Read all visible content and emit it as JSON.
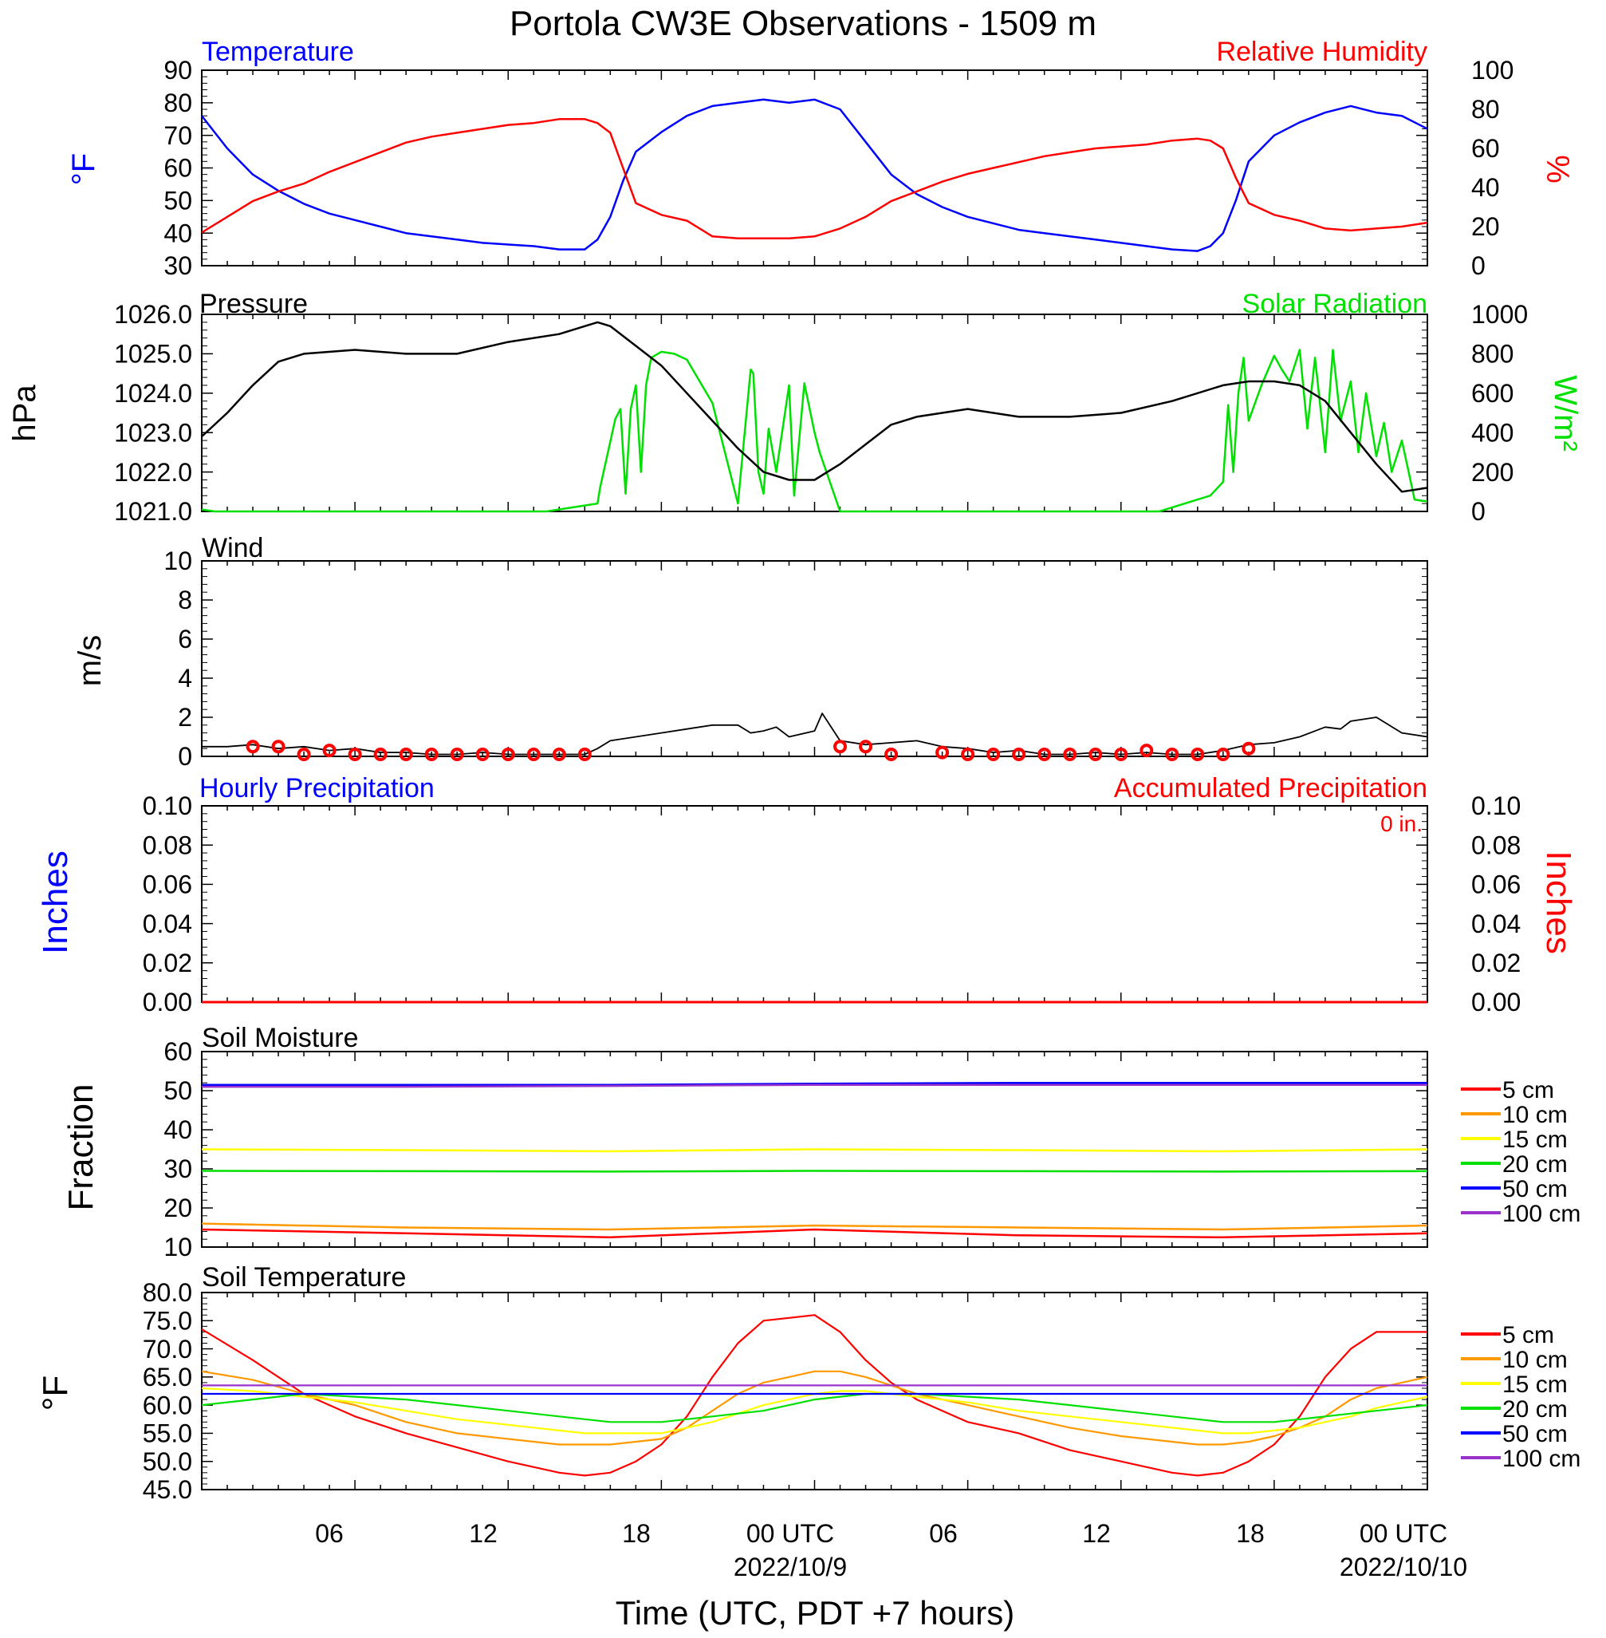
{
  "page": {
    "title": "Portola CW3E Observations - 1509 m",
    "xlabel": "Time (UTC, PDT +7 hours)",
    "x_ticks": [
      "06",
      "12",
      "18",
      "00 UTC",
      "06",
      "12",
      "18",
      "00 UTC"
    ],
    "date_labels": [
      "2022/10/9",
      "2022/10/10"
    ]
  },
  "colors": {
    "temperature": "#0000ff",
    "humidity": "#ff0000",
    "pressure": "#000000",
    "solar": "#00e000",
    "wind": "#000000",
    "wind_marker": "#ff0000",
    "hourly_precip": "#0000ff",
    "accum_precip": "#ff0000",
    "depth_5cm": "#ff0000",
    "depth_10cm": "#ff9900",
    "depth_15cm": "#ffff00",
    "depth_20cm": "#00e000",
    "depth_50cm": "#0000ff",
    "depth_100cm": "#9933cc"
  },
  "chart_data": [
    {
      "type": "line",
      "title": "Temperature / Relative Humidity",
      "left_label": "Temperature",
      "right_label": "Relative Humidity",
      "left_units": "°F",
      "right_units": "%",
      "left_ticks": [
        "90",
        "80",
        "70",
        "60",
        "50",
        "40",
        "30"
      ],
      "right_ticks": [
        "100",
        "80",
        "60",
        "40",
        "20",
        "0"
      ],
      "ylim_left": [
        30,
        90
      ],
      "ylim_right": [
        0,
        100
      ],
      "x_hours": [
        0,
        1,
        2,
        3,
        4,
        5,
        6,
        7,
        8,
        9,
        10,
        11,
        12,
        13,
        14,
        15,
        15.5,
        16,
        16.5,
        17,
        18,
        19,
        20,
        21,
        22,
        23,
        24,
        25,
        26,
        27,
        28,
        29,
        30,
        31,
        32,
        33,
        34,
        35,
        36,
        37,
        38,
        39,
        39.5,
        40,
        40.5,
        41,
        42,
        43,
        44,
        45,
        46,
        47,
        48
      ],
      "series": [
        {
          "name": "Temperature",
          "axis": "left",
          "values": [
            76,
            66,
            58,
            53,
            49,
            46,
            44,
            42,
            40,
            39,
            38,
            37,
            36.5,
            36,
            35,
            35,
            38,
            45,
            56,
            65,
            71,
            76,
            79,
            80,
            81,
            80,
            81,
            78,
            68,
            58,
            52,
            48,
            45,
            43,
            41,
            40,
            39,
            38,
            37,
            36,
            35,
            34.5,
            36,
            40,
            50,
            62,
            70,
            74,
            77,
            79,
            77,
            76,
            72
          ]
        },
        {
          "name": "Relative Humidity",
          "axis": "right",
          "values": [
            17,
            25,
            33,
            38,
            42,
            48,
            53,
            58,
            63,
            66,
            68,
            70,
            72,
            73,
            75,
            75,
            73,
            68,
            50,
            32,
            26,
            23,
            15,
            14,
            14,
            14,
            15,
            19,
            25,
            33,
            38,
            43,
            47,
            50,
            53,
            56,
            58,
            60,
            61,
            62,
            64,
            65,
            64,
            60,
            45,
            32,
            26,
            23,
            19,
            18,
            19,
            20,
            22
          ]
        }
      ]
    },
    {
      "type": "line",
      "title": "Pressure / Solar Radiation",
      "left_label": "Pressure",
      "right_label": "Solar Radiation",
      "left_units": "hPa",
      "right_units": "W/m²",
      "left_ticks": [
        "1026.0",
        "1025.0",
        "1024.0",
        "1023.0",
        "1022.0",
        "1021.0"
      ],
      "right_ticks": [
        "1000",
        "800",
        "600",
        "400",
        "200",
        "0"
      ],
      "ylim_left": [
        1021,
        1026
      ],
      "ylim_right": [
        0,
        1000
      ],
      "pressure_x_hours": [
        0,
        1,
        2,
        3,
        4,
        6,
        8,
        10,
        12,
        14,
        15,
        15.5,
        16,
        17,
        18,
        19,
        20,
        21,
        22,
        22.5,
        23,
        24,
        25,
        26,
        27,
        28,
        30,
        32,
        34,
        36,
        38,
        40,
        41,
        42,
        43,
        44,
        45,
        46,
        47,
        48
      ],
      "pressure": [
        1022.9,
        1023.5,
        1024.2,
        1024.8,
        1025.0,
        1025.1,
        1025.0,
        1025.0,
        1025.3,
        1025.5,
        1025.7,
        1025.8,
        1025.7,
        1025.2,
        1024.7,
        1024.0,
        1023.3,
        1022.6,
        1022.0,
        1021.9,
        1021.8,
        1021.8,
        1022.2,
        1022.7,
        1023.2,
        1023.4,
        1023.6,
        1023.4,
        1023.4,
        1023.5,
        1023.8,
        1024.2,
        1024.3,
        1024.3,
        1024.2,
        1023.8,
        1023.0,
        1022.2,
        1021.5,
        1021.6
      ],
      "solar_x_hours": [
        0,
        0.5,
        5,
        10,
        12.5,
        13.5,
        15.5,
        15.6,
        16.2,
        16.4,
        16.6,
        16.8,
        17.0,
        17.2,
        17.4,
        17.6,
        18.0,
        18.5,
        19.0,
        20.0,
        21.0,
        21.5,
        21.6,
        21.8,
        22.0,
        22.2,
        22.5,
        23.0,
        23.2,
        23.6,
        24.0,
        24.2,
        25.0,
        25.5,
        26.0,
        30,
        35,
        37.5,
        38.5,
        39.5,
        40.0,
        40.2,
        40.4,
        40.6,
        40.8,
        41.0,
        41.5,
        42.0,
        42.3,
        42.6,
        43.0,
        43.3,
        43.6,
        44.0,
        44.3,
        44.6,
        45.0,
        45.3,
        45.6,
        46.0,
        46.3,
        46.6,
        47.0,
        47.5,
        48.0
      ],
      "solar": [
        10,
        0,
        0,
        0,
        0,
        0,
        40,
        120,
        470,
        520,
        90,
        520,
        640,
        200,
        640,
        780,
        810,
        800,
        770,
        550,
        40,
        720,
        700,
        200,
        90,
        420,
        200,
        640,
        80,
        650,
        400,
        300,
        0,
        0,
        0,
        0,
        0,
        0,
        40,
        80,
        150,
        540,
        200,
        600,
        780,
        460,
        640,
        790,
        720,
        660,
        820,
        420,
        780,
        300,
        820,
        460,
        660,
        300,
        600,
        280,
        450,
        200,
        360,
        60,
        50
      ]
    },
    {
      "type": "line",
      "title": "Wind",
      "units": "m/s",
      "y_ticks": [
        "10",
        "8",
        "6",
        "4",
        "2",
        "0"
      ],
      "ylim": [
        0,
        10
      ],
      "x_hours": [
        0,
        1,
        2,
        3,
        4,
        5,
        6,
        7,
        8,
        9,
        10,
        11,
        12,
        13,
        14,
        15,
        15.5,
        16,
        17,
        18,
        19,
        20,
        21,
        21.5,
        22,
        22.5,
        23,
        24,
        24.3,
        25,
        26,
        27,
        28,
        29,
        30,
        31,
        32,
        33,
        34,
        35,
        36,
        37,
        38,
        39,
        40,
        41,
        42,
        43,
        44,
        44.6,
        45,
        46,
        47,
        48
      ],
      "values": [
        0.5,
        0.5,
        0.6,
        0.4,
        0.5,
        0.3,
        0.4,
        0.2,
        0.2,
        0.1,
        0.1,
        0.2,
        0.1,
        0.1,
        0.1,
        0.1,
        0.4,
        0.8,
        1.0,
        1.2,
        1.4,
        1.6,
        1.6,
        1.2,
        1.3,
        1.5,
        1.0,
        1.3,
        2.2,
        0.8,
        0.6,
        0.7,
        0.8,
        0.5,
        0.4,
        0.2,
        0.3,
        0.1,
        0.1,
        0.2,
        0.1,
        0.2,
        0.1,
        0.1,
        0.3,
        0.6,
        0.7,
        1.0,
        1.5,
        1.4,
        1.8,
        2.0,
        1.2,
        1.0
      ],
      "marker_hours": [
        2,
        3,
        4,
        5,
        6,
        7,
        8,
        9,
        10,
        11,
        12,
        13,
        14,
        15,
        25,
        26,
        27,
        29,
        30,
        31,
        32,
        33,
        34,
        35,
        36,
        37,
        38,
        39,
        40,
        41
      ],
      "marker_values": [
        0.5,
        0.5,
        0.1,
        0.3,
        0.1,
        0.1,
        0.1,
        0.1,
        0.1,
        0.1,
        0.1,
        0.1,
        0.1,
        0.1,
        0.5,
        0.5,
        0.1,
        0.2,
        0.1,
        0.1,
        0.1,
        0.1,
        0.1,
        0.1,
        0.1,
        0.3,
        0.1,
        0.1,
        0.1,
        0.4
      ]
    },
    {
      "type": "line",
      "title": "Hourly Precipitation / Accumulated Precipitation",
      "left_label": "Hourly Precipitation",
      "right_label": "Accumulated Precipitation",
      "accum_total": "0 in.",
      "left_units": "Inches",
      "right_units": "Inches",
      "left_ticks": [
        "0.10",
        "0.08",
        "0.06",
        "0.04",
        "0.02",
        "0.00"
      ],
      "right_ticks": [
        "0.10",
        "0.08",
        "0.06",
        "0.04",
        "0.02",
        "0.00"
      ],
      "ylim": [
        0,
        0.1
      ],
      "x_hours": [
        0,
        48
      ],
      "values": [
        0,
        0
      ]
    },
    {
      "type": "line",
      "title": "Soil Moisture",
      "units": "Fraction",
      "y_ticks": [
        "60",
        "50",
        "40",
        "30",
        "20",
        "10"
      ],
      "ylim": [
        10,
        60
      ],
      "legend": [
        "5 cm",
        "10 cm",
        "15 cm",
        "20 cm",
        "50 cm",
        "100 cm"
      ],
      "x_hours": [
        0,
        8,
        16,
        24,
        32,
        40,
        48
      ],
      "series": [
        {
          "name": "5 cm",
          "values": [
            14.5,
            13.5,
            12.5,
            14.5,
            13.0,
            12.5,
            13.5
          ]
        },
        {
          "name": "10 cm",
          "values": [
            16.0,
            15.0,
            14.5,
            15.5,
            15.0,
            14.5,
            15.5
          ]
        },
        {
          "name": "15 cm",
          "values": [
            35.0,
            34.8,
            34.5,
            35.0,
            34.8,
            34.5,
            35.0
          ]
        },
        {
          "name": "20 cm",
          "values": [
            29.5,
            29.4,
            29.3,
            29.5,
            29.4,
            29.3,
            29.4
          ]
        },
        {
          "name": "50 cm",
          "values": [
            51.5,
            51.5,
            51.5,
            51.8,
            52.0,
            52.0,
            52.0
          ]
        },
        {
          "name": "100 cm",
          "values": [
            51.0,
            51.0,
            51.2,
            51.5,
            51.5,
            51.5,
            51.5
          ]
        }
      ]
    },
    {
      "type": "line",
      "title": "Soil Temperature",
      "units": "°F",
      "y_ticks": [
        "80.0",
        "75.0",
        "70.0",
        "65.0",
        "60.0",
        "55.0",
        "50.0",
        "45.0"
      ],
      "ylim": [
        45,
        80
      ],
      "legend": [
        "5 cm",
        "10 cm",
        "15 cm",
        "20 cm",
        "50 cm",
        "100 cm"
      ],
      "x_hours": [
        0,
        2,
        4,
        6,
        8,
        10,
        12,
        14,
        15,
        16,
        17,
        18,
        19,
        20,
        21,
        22,
        23,
        24,
        25,
        26,
        27,
        28,
        30,
        32,
        34,
        36,
        38,
        39,
        40,
        41,
        42,
        43,
        44,
        45,
        46,
        47,
        48
      ],
      "series": [
        {
          "name": "5 cm",
          "values": [
            73.5,
            68,
            62,
            58,
            55,
            52.5,
            50,
            48,
            47.5,
            48,
            50,
            53,
            58,
            65,
            71,
            75,
            75.5,
            76,
            73,
            68,
            64,
            61,
            57,
            55,
            52,
            50,
            48,
            47.5,
            48,
            50,
            53,
            58,
            65,
            70,
            73,
            73,
            73
          ]
        },
        {
          "name": "10 cm",
          "values": [
            66,
            64.5,
            62,
            60,
            57,
            55,
            54,
            53,
            53,
            53,
            53.5,
            54,
            56,
            59,
            62,
            64,
            65,
            66,
            66,
            65,
            63.5,
            62,
            60,
            58,
            56,
            54.5,
            53.5,
            53,
            53,
            53.5,
            54.5,
            56,
            58,
            61,
            63,
            64,
            65
          ]
        },
        {
          "name": "15 cm",
          "values": [
            63,
            62.5,
            61.5,
            60.5,
            59,
            57.5,
            56.5,
            55.5,
            55,
            55,
            55,
            55,
            56,
            57,
            58.5,
            60,
            61,
            62,
            62.5,
            62.5,
            62,
            61.5,
            60.5,
            59,
            58,
            57,
            56,
            55.5,
            55,
            55,
            55.5,
            56,
            57,
            58,
            59.5,
            60.5,
            61.5
          ]
        },
        {
          "name": "20 cm",
          "values": [
            60,
            61,
            62,
            61.5,
            61,
            60,
            59,
            58,
            57.5,
            57,
            57,
            57,
            57.5,
            58,
            58.5,
            59,
            60,
            61,
            61.5,
            62,
            62,
            62,
            61.5,
            61,
            60,
            59,
            58,
            57.5,
            57,
            57,
            57,
            57.5,
            58,
            58.5,
            59,
            59.5,
            60
          ]
        },
        {
          "name": "50 cm",
          "values": [
            62,
            62,
            62,
            62,
            62,
            62,
            62,
            62,
            62,
            62,
            62,
            62,
            62,
            62,
            62,
            62,
            62,
            62,
            62,
            62,
            62,
            62,
            62,
            62,
            62,
            62,
            62,
            62,
            62,
            62,
            62,
            62,
            62,
            62,
            62,
            62,
            62
          ]
        },
        {
          "name": "100 cm",
          "values": [
            63.5,
            63.5,
            63.5,
            63.5,
            63.5,
            63.5,
            63.5,
            63.5,
            63.5,
            63.5,
            63.5,
            63.5,
            63.5,
            63.5,
            63.5,
            63.5,
            63.5,
            63.5,
            63.5,
            63.5,
            63.5,
            63.5,
            63.5,
            63.5,
            63.5,
            63.5,
            63.5,
            63.5,
            63.5,
            63.5,
            63.5,
            63.5,
            63.5,
            63.5,
            63.5,
            63.5,
            63.5
          ]
        }
      ]
    }
  ]
}
